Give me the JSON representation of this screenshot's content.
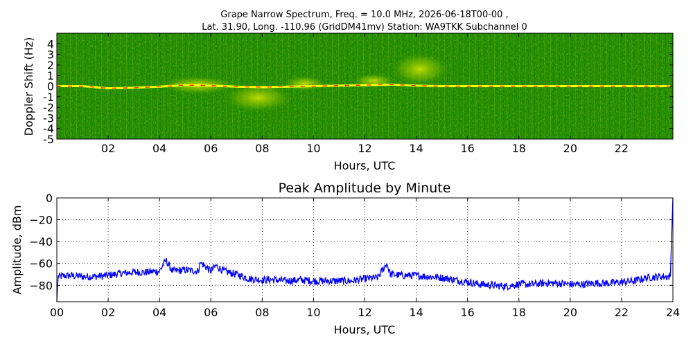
{
  "chart_data": [
    {
      "type": "heatmap",
      "title_line1": "Grape Narrow Spectrum, Freq. = 10.0 MHz, 2026-06-18T00-00 ,",
      "title_line2": "Lat.  31.90, Long. -110.96 (GridDM41mv) Station: WA9TKK Subchannel 0",
      "xlabel": "Hours, UTC",
      "ylabel": "Doppler Shift (Hz)",
      "xlim": [
        0,
        24
      ],
      "ylim": [
        -5,
        5
      ],
      "x_ticks": [
        "02",
        "04",
        "06",
        "08",
        "10",
        "12",
        "14",
        "16",
        "18",
        "20",
        "22"
      ],
      "x_tick_values": [
        2,
        4,
        6,
        8,
        10,
        12,
        14,
        16,
        18,
        20,
        22
      ],
      "y_ticks": [
        "4",
        "3",
        "2",
        "1",
        "0",
        "-1",
        "-2",
        "-3",
        "-4",
        "-5"
      ],
      "y_tick_values": [
        4,
        3,
        2,
        1,
        0,
        -1,
        -2,
        -3,
        -4,
        -5
      ],
      "background_color": "#1f8a00",
      "trace_color": "#ffff00",
      "peak_color": "#ff2a00",
      "main_trace": {
        "hours": [
          0,
          1,
          2,
          3,
          4,
          5,
          6,
          7,
          8,
          9,
          10,
          11,
          12,
          13,
          14,
          15,
          16,
          18,
          20,
          22,
          23.9
        ],
        "doppler_hz": [
          0.0,
          0.0,
          -0.2,
          -0.15,
          -0.05,
          0.1,
          0.05,
          -0.05,
          -0.1,
          -0.05,
          0.0,
          0.05,
          0.1,
          0.15,
          0.05,
          0.0,
          0.0,
          0.0,
          0.0,
          0.0,
          0.0
        ]
      },
      "spread_features": [
        {
          "hours": [
            4.0,
            7.0
          ],
          "doppler_range": [
            -0.8,
            1.0
          ]
        },
        {
          "hours": [
            6.5,
            9.2
          ],
          "doppler_range": [
            -2.5,
            0.3
          ]
        },
        {
          "hours": [
            8.8,
            10.5
          ],
          "doppler_range": [
            -0.5,
            1.0
          ]
        },
        {
          "hours": [
            11.5,
            13.2
          ],
          "doppler_range": [
            -0.2,
            1.2
          ]
        },
        {
          "hours": [
            13.0,
            15.3
          ],
          "doppler_range": [
            0.0,
            3.2
          ]
        }
      ]
    },
    {
      "type": "line",
      "title": "Peak Amplitude by Minute",
      "xlabel": "Hours, UTC",
      "ylabel": "Amplitude, dBm",
      "xlim": [
        0,
        24
      ],
      "ylim": [
        -95,
        0
      ],
      "grid": true,
      "x_ticks": [
        "00",
        "02",
        "04",
        "06",
        "08",
        "10",
        "12",
        "14",
        "16",
        "18",
        "20",
        "22",
        "24"
      ],
      "x_tick_values": [
        0,
        2,
        4,
        6,
        8,
        10,
        12,
        14,
        16,
        18,
        20,
        22,
        24
      ],
      "y_ticks": [
        "0",
        "−20",
        "−40",
        "−60",
        "−80"
      ],
      "y_tick_values": [
        0,
        -20,
        -40,
        -60,
        -80
      ],
      "line_color": "#0000ff",
      "series": [
        {
          "x": [
            0.0,
            0.05,
            0.5,
            1.0,
            1.5,
            2.0,
            2.5,
            3.0,
            3.5,
            4.0,
            4.25,
            4.5,
            5.0,
            5.5,
            5.6,
            6.0,
            6.2,
            6.5,
            7.0,
            7.5,
            8.0,
            8.5,
            9.0,
            9.5,
            10.0,
            10.5,
            11.0,
            11.5,
            12.0,
            12.5,
            12.85,
            13.0,
            13.5,
            14.0,
            14.5,
            15.0,
            15.5,
            16.0,
            16.5,
            17.0,
            17.5,
            18.0,
            18.5,
            19.0,
            19.5,
            20.0,
            20.5,
            21.0,
            21.5,
            22.0,
            22.5,
            23.0,
            23.5,
            23.9,
            24.0
          ],
          "y": [
            -95,
            -72,
            -71,
            -72,
            -72,
            -71,
            -69,
            -68,
            -68,
            -67,
            -57,
            -67,
            -66,
            -67,
            -59,
            -67,
            -62,
            -67,
            -70,
            -74,
            -75,
            -75,
            -76,
            -75,
            -76,
            -76,
            -76,
            -76,
            -74,
            -73,
            -60,
            -70,
            -71,
            -71,
            -72,
            -73,
            -75,
            -77,
            -79,
            -80,
            -81,
            -79,
            -79,
            -78,
            -78,
            -79,
            -79,
            -78,
            -78,
            -77,
            -76,
            -73,
            -72,
            -72,
            0
          ]
        }
      ]
    }
  ]
}
